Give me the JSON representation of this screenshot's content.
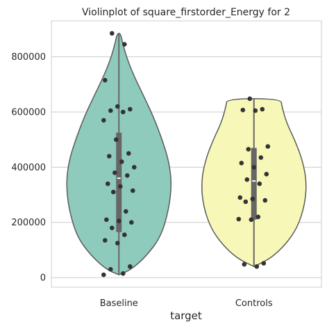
{
  "chart_data": {
    "type": "violin",
    "title": "Violinplot of square_firstorder_Energy for 2",
    "xlabel": "target",
    "ylabel": "",
    "ylim": [
      -35000,
      930000
    ],
    "yticks": [
      0,
      200000,
      400000,
      600000,
      800000
    ],
    "ytick_labels": [
      "0",
      "200000",
      "400000",
      "600000",
      "800000"
    ],
    "grid": "horizontal",
    "categories": [
      "Baseline",
      "Controls"
    ],
    "colors": {
      "Baseline": "#8ecbbd",
      "Controls": "#f7f7b8",
      "points": "#333333",
      "box": "#666666",
      "outline": "#5a5a5a",
      "grid": "#cccccc"
    },
    "groups": [
      {
        "name": "Baseline",
        "range": [
          10000,
          885000
        ],
        "box": {
          "q1": 165000,
          "median": 360000,
          "q3": 525000
        },
        "density": [
          [
            10000,
            0.0
          ],
          [
            30000,
            0.24
          ],
          [
            80000,
            0.53
          ],
          [
            150000,
            0.8
          ],
          [
            250000,
            0.95
          ],
          [
            340000,
            1.0
          ],
          [
            420000,
            0.95
          ],
          [
            500000,
            0.82
          ],
          [
            580000,
            0.66
          ],
          [
            650000,
            0.49
          ],
          [
            720000,
            0.31
          ],
          [
            790000,
            0.16
          ],
          [
            850000,
            0.07
          ],
          [
            885000,
            0.03
          ]
        ],
        "points": [
          10000,
          15000,
          30000,
          40000,
          125000,
          135000,
          155000,
          180000,
          200000,
          205000,
          210000,
          240000,
          310000,
          315000,
          330000,
          340000,
          370000,
          380000,
          400000,
          420000,
          440000,
          450000,
          500000,
          570000,
          600000,
          605000,
          610000,
          620000,
          715000,
          845000,
          885000
        ]
      },
      {
        "name": "Controls",
        "range": [
          40000,
          648000
        ],
        "box": {
          "q1": 210000,
          "median": 350000,
          "q3": 470000
        },
        "density": [
          [
            40000,
            0.0
          ],
          [
            70000,
            0.32
          ],
          [
            120000,
            0.6
          ],
          [
            180000,
            0.82
          ],
          [
            260000,
            0.96
          ],
          [
            340000,
            1.0
          ],
          [
            420000,
            0.93
          ],
          [
            500000,
            0.77
          ],
          [
            560000,
            0.62
          ],
          [
            620000,
            0.53
          ],
          [
            648000,
            0.51
          ]
        ],
        "points": [
          40000,
          48000,
          52000,
          210000,
          212000,
          220000,
          275000,
          280000,
          285000,
          290000,
          340000,
          355000,
          375000,
          400000,
          415000,
          435000,
          465000,
          475000,
          605000,
          607000,
          610000,
          648000
        ]
      }
    ]
  }
}
